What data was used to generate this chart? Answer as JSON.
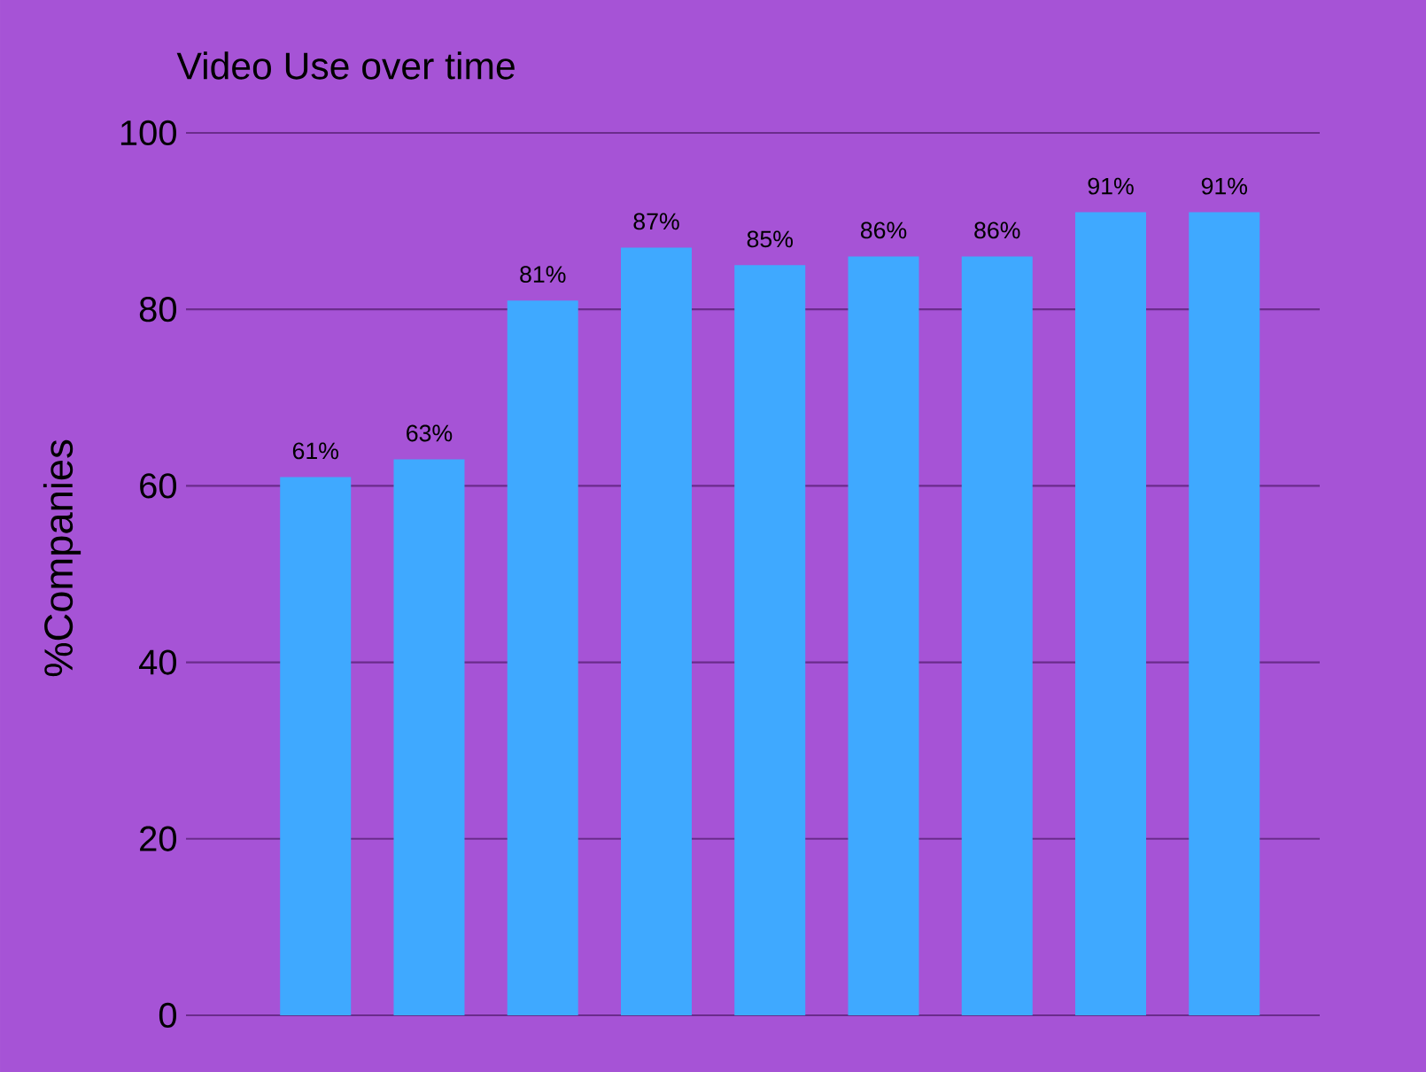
{
  "chart_data": {
    "type": "bar",
    "title": "Video Use over time",
    "ylabel": "%Companies",
    "categories": [
      null,
      null,
      null,
      null,
      null,
      null,
      null,
      null,
      null
    ],
    "values": [
      61,
      63,
      81,
      87,
      85,
      86,
      86,
      91,
      91
    ],
    "value_labels": [
      "61%",
      "63%",
      "81%",
      "87%",
      "85%",
      "86%",
      "86%",
      "91%",
      "91%"
    ],
    "color": "#3fa9ff",
    "ylim": [
      0,
      100
    ],
    "yticks": [
      0,
      20,
      40,
      60,
      80,
      100
    ],
    "grid": "y"
  }
}
